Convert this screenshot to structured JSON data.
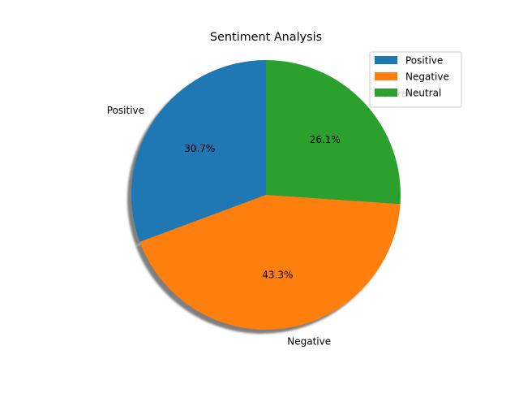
{
  "chart_data": {
    "type": "pie",
    "title": "Sentiment Analysis",
    "categories": [
      "Positive",
      "Negative",
      "Neutral"
    ],
    "values": [
      30.7,
      43.3,
      26.1
    ],
    "percent_labels": [
      "30.7%",
      "43.3%",
      "26.1%"
    ],
    "colors": [
      "#1f77b4",
      "#ff7f0e",
      "#2ca02c"
    ],
    "start_angle_deg": 90,
    "direction": "counterclockwise",
    "shadow": true,
    "legend": {
      "placement": "top-right",
      "entries": [
        "Positive",
        "Negative",
        "Neutral"
      ]
    }
  }
}
